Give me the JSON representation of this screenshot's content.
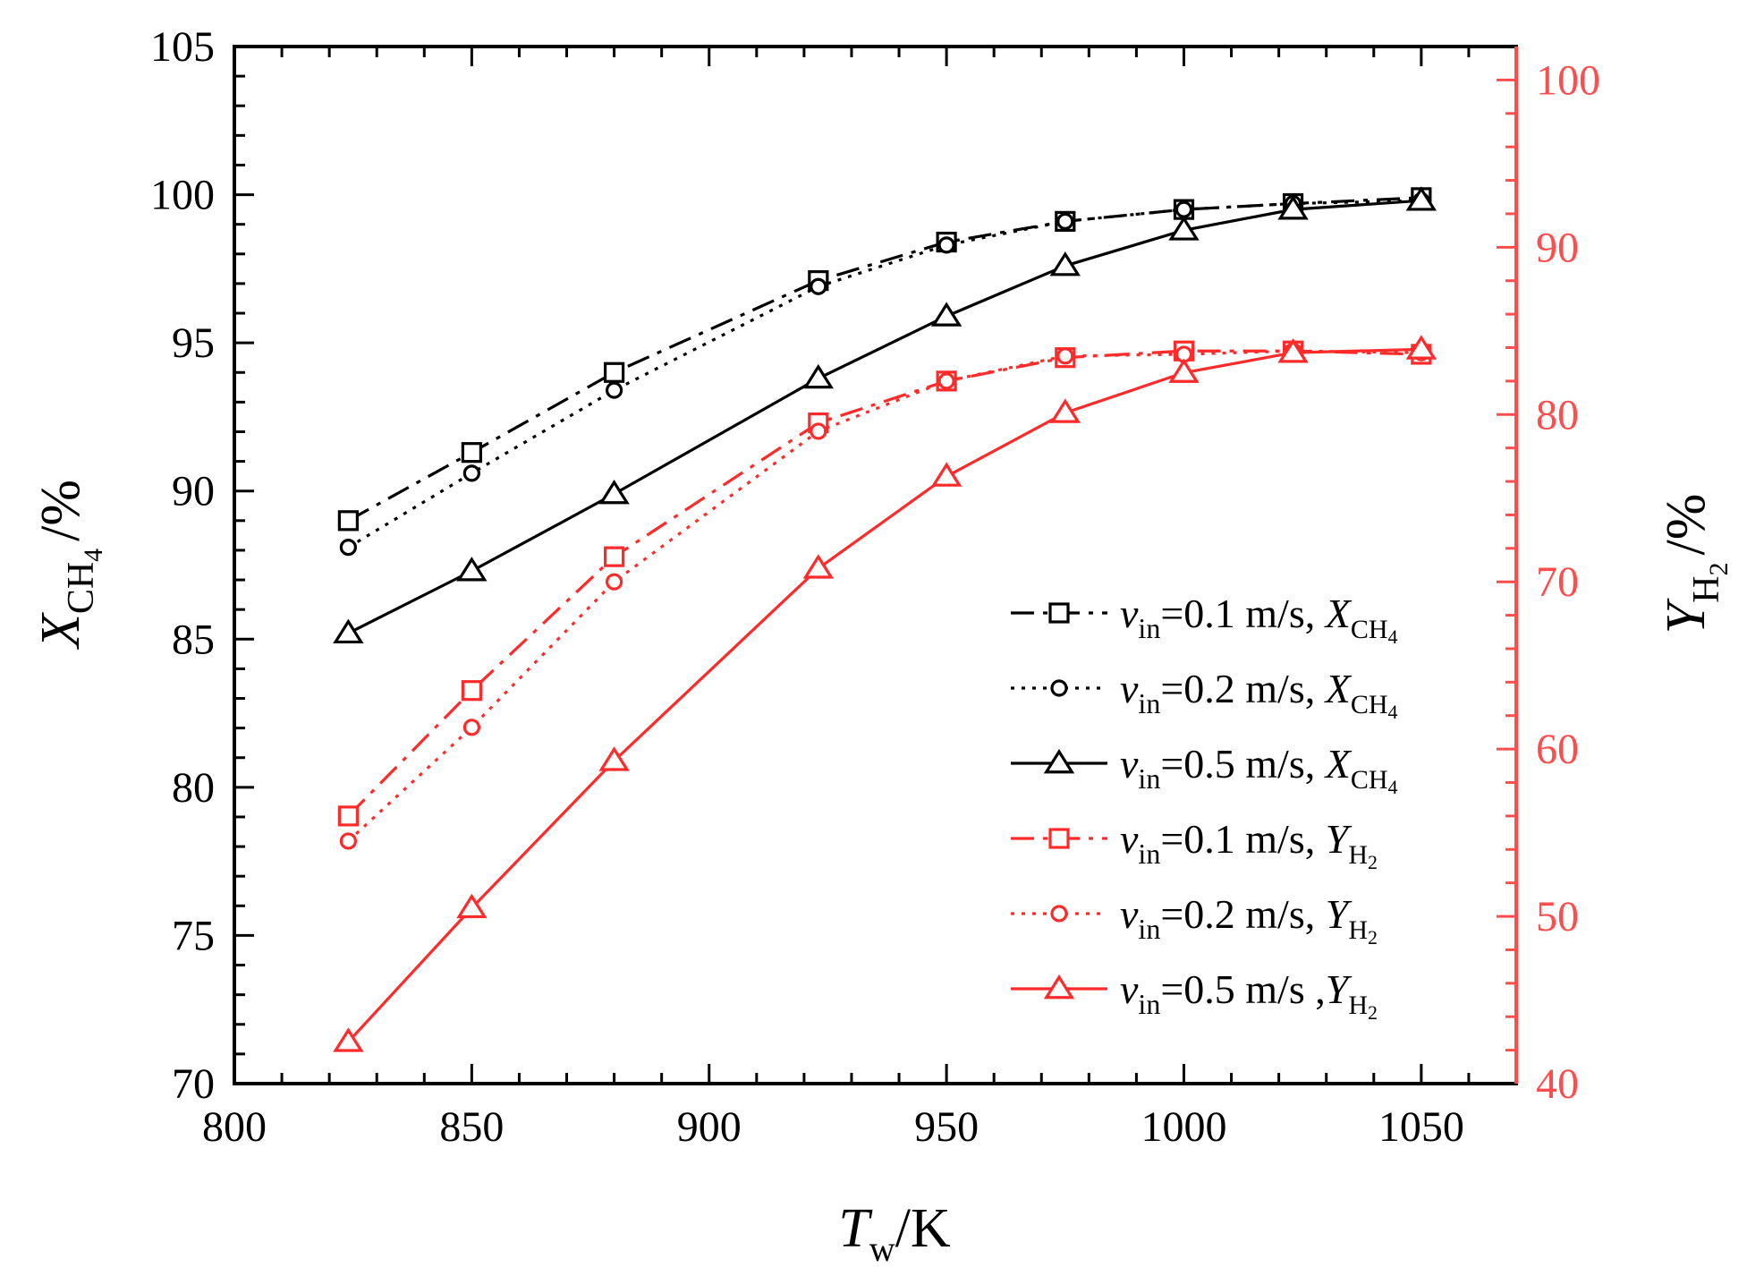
{
  "chart_data": {
    "type": "line",
    "title": "",
    "x": [
      824,
      850,
      880,
      923,
      950,
      975,
      1000,
      1023,
      1050
    ],
    "xlabel": {
      "main": "T",
      "sub": "w",
      "unit": "/K"
    },
    "ylabel_left": {
      "main": "X",
      "sub": "CH",
      "subsub": "4",
      "unit": "/%"
    },
    "ylabel_right": {
      "main": "Y",
      "sub": "H",
      "subsub": "2",
      "unit": "/%"
    },
    "xlim": [
      800,
      1070
    ],
    "ylim_left": [
      70,
      105
    ],
    "ylim_right": [
      40,
      102
    ],
    "xticks": [
      "800",
      "850",
      "900",
      "950",
      "1000",
      "1050"
    ],
    "yticks_left": [
      "70",
      "75",
      "80",
      "85",
      "90",
      "95",
      "100",
      "105"
    ],
    "yticks_right": [
      "40",
      "50",
      "60",
      "70",
      "80",
      "90",
      "100"
    ],
    "colors": {
      "black": "#000000",
      "red": "#ff2a2a",
      "axis_right": "#ff4d4d"
    },
    "legend_position": "lower-right",
    "series": [
      {
        "name": "vin=0.1 m/s, X_CH4",
        "axis": "left",
        "color": "#000000",
        "marker": "square",
        "dash": "dashdot",
        "label": {
          "v": "v",
          "vsub": "in",
          "eq": "=0.1 m/s, ",
          "q": "X",
          "qsub": "CH",
          "qsubsub": "4"
        },
        "values": [
          89.0,
          91.3,
          94.0,
          97.1,
          98.4,
          99.1,
          99.5,
          99.7,
          99.9
        ]
      },
      {
        "name": "vin=0.2 m/s, X_CH4",
        "axis": "left",
        "color": "#000000",
        "marker": "circle",
        "dash": "dotted",
        "label": {
          "v": "v",
          "vsub": "in",
          "eq": "=0.2 m/s, ",
          "q": "X",
          "qsub": "CH",
          "qsubsub": "4"
        },
        "values": [
          88.1,
          90.6,
          93.4,
          96.9,
          98.3,
          99.1,
          99.5,
          99.7,
          99.8
        ]
      },
      {
        "name": "vin=0.5 m/s, X_CH4",
        "axis": "left",
        "color": "#000000",
        "marker": "triangle",
        "dash": "solid",
        "label": {
          "v": "v",
          "vsub": "in",
          "eq": "=0.5 m/s, ",
          "q": "X",
          "qsub": "CH",
          "qsubsub": "4"
        },
        "values": [
          85.2,
          87.3,
          89.9,
          93.8,
          95.9,
          97.6,
          98.8,
          99.5,
          99.8
        ]
      },
      {
        "name": "vin=0.1 m/s, Y_H2",
        "axis": "right",
        "color": "#ff2a2a",
        "marker": "square",
        "dash": "dashdot",
        "label": {
          "v": "v",
          "vsub": "in",
          "eq": "=0.1 m/s, ",
          "q": "Y",
          "qsub": "H",
          "qsubsub": "2"
        },
        "values": [
          56.0,
          63.5,
          71.5,
          79.5,
          82.0,
          83.4,
          83.8,
          83.8,
          83.6
        ]
      },
      {
        "name": "vin=0.2 m/s, Y_H2",
        "axis": "right",
        "color": "#ff2a2a",
        "marker": "circle",
        "dash": "dotted",
        "label": {
          "v": "v",
          "vsub": "in",
          "eq": "=0.2 m/s, ",
          "q": "Y",
          "qsub": "H",
          "qsubsub": "2"
        },
        "values": [
          54.5,
          61.3,
          70.0,
          79.0,
          82.0,
          83.5,
          83.6,
          83.8,
          83.7
        ]
      },
      {
        "name": "vin=0.5 m/s, Y_H2",
        "axis": "right",
        "color": "#ff2a2a",
        "marker": "triangle",
        "dash": "solid",
        "label": {
          "v": "v",
          "vsub": "in",
          "eq": "=0.5 m/s ,",
          "q": "Y",
          "qsub": "H",
          "qsubsub": "2"
        },
        "values": [
          42.5,
          50.5,
          59.3,
          70.8,
          76.3,
          80.1,
          82.5,
          83.7,
          83.9
        ]
      }
    ]
  }
}
